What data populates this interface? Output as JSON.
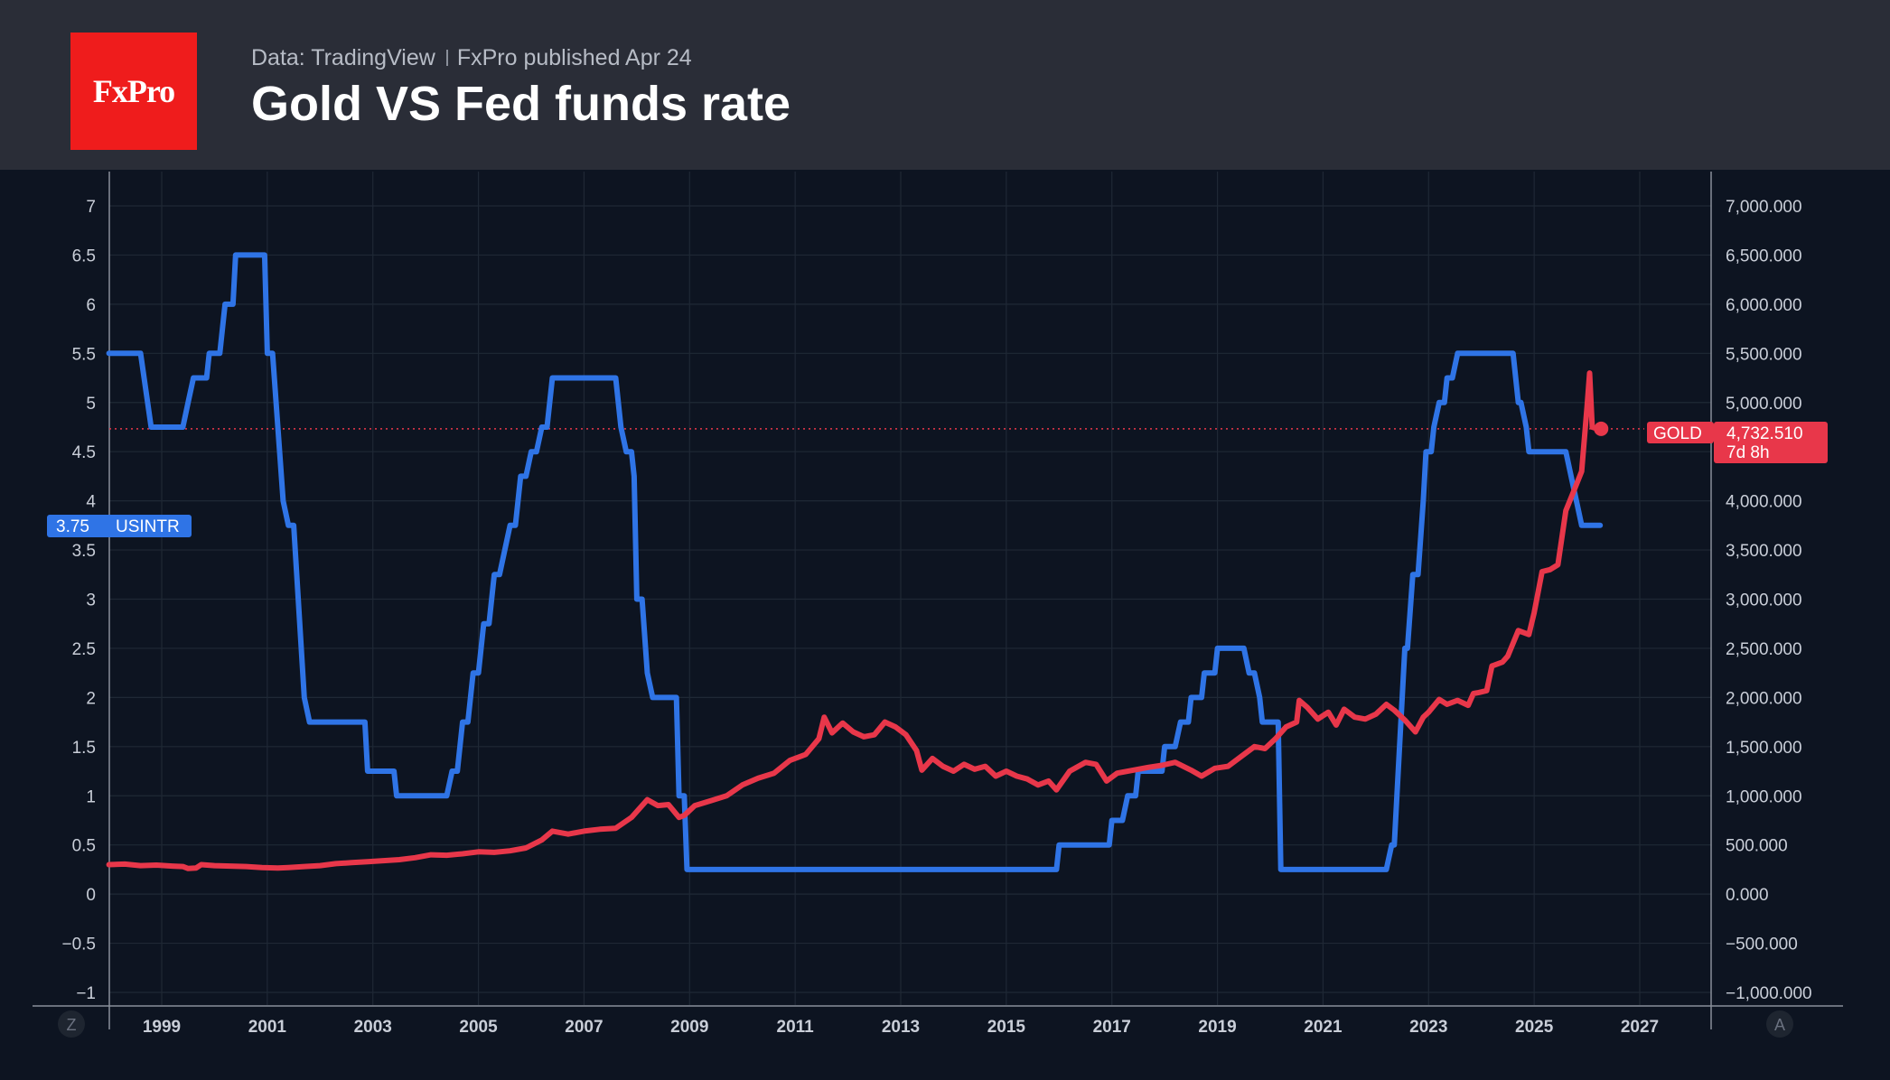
{
  "header": {
    "logo_text": "FxPro",
    "source": "Data: TradingView",
    "publisher": "FxPro published Apr 24",
    "title": "Gold VS Fed funds rate"
  },
  "colors": {
    "background": "#0d1421",
    "header": "#2a2d37",
    "logo": "#ef1c1c",
    "rate": "#2f74e6",
    "gold": "#e8374a",
    "grid": "#1f2835"
  },
  "corner_labels": {
    "left": "Z",
    "right": "A"
  },
  "chart_data": {
    "type": "line",
    "title": "Gold VS Fed funds rate",
    "xlabel": "",
    "x_ticks": [
      "1999",
      "2001",
      "2003",
      "2005",
      "2007",
      "2009",
      "2011",
      "2013",
      "2015",
      "2017",
      "2019",
      "2021",
      "2023",
      "2025",
      "2027"
    ],
    "xlim": [
      1998,
      2028.2
    ],
    "left_axis": {
      "ylim": [
        -1,
        7.4
      ],
      "ticks": [
        -1,
        -0.5,
        0,
        0.5,
        1,
        1.5,
        2,
        2.5,
        3,
        3.5,
        4,
        4.5,
        5,
        5.5,
        6,
        6.5,
        7
      ],
      "tick_labels": [
        "−1",
        "−0.5",
        "0",
        "0.5",
        "1",
        "1.5",
        "2",
        "2.5",
        "3",
        "3.5",
        "4",
        "4.5",
        "5",
        "5.5",
        "6",
        "6.5",
        "7"
      ]
    },
    "right_axis": {
      "ylim": [
        -1000,
        7400
      ],
      "ticks": [
        -1000,
        -500,
        0,
        500,
        1000,
        1500,
        2000,
        2500,
        3000,
        3500,
        4000,
        4500,
        5000,
        5500,
        6000,
        6500,
        7000
      ],
      "tick_labels": [
        "−1,000.000",
        "−500.000",
        "0.000",
        "500.000",
        "1,000.000",
        "1,500.000",
        "2,000.000",
        "2,500.000",
        "3,000.000",
        "3,500.000",
        "4,000.000",
        "4,500.000",
        "5,000.000",
        "5,500.000",
        "6,000.000",
        "6,500.000",
        "7,000.000"
      ]
    },
    "series": [
      {
        "name": "USINTR",
        "axis": "left",
        "last_value_label": "3.75",
        "points": [
          [
            1998.0,
            5.5
          ],
          [
            1998.6,
            5.5
          ],
          [
            1998.8,
            4.75
          ],
          [
            1999.4,
            4.75
          ],
          [
            1999.5,
            5.0
          ],
          [
            1999.6,
            5.25
          ],
          [
            1999.85,
            5.25
          ],
          [
            1999.9,
            5.5
          ],
          [
            2000.1,
            5.5
          ],
          [
            2000.2,
            6.0
          ],
          [
            2000.35,
            6.0
          ],
          [
            2000.4,
            6.5
          ],
          [
            2000.95,
            6.5
          ],
          [
            2001.0,
            5.5
          ],
          [
            2001.1,
            5.5
          ],
          [
            2001.3,
            4.0
          ],
          [
            2001.4,
            3.75
          ],
          [
            2001.5,
            3.75
          ],
          [
            2001.7,
            2.0
          ],
          [
            2001.8,
            1.75
          ],
          [
            2002.85,
            1.75
          ],
          [
            2002.9,
            1.25
          ],
          [
            2003.4,
            1.25
          ],
          [
            2003.45,
            1.0
          ],
          [
            2004.4,
            1.0
          ],
          [
            2004.5,
            1.25
          ],
          [
            2004.6,
            1.25
          ],
          [
            2004.7,
            1.75
          ],
          [
            2004.8,
            1.75
          ],
          [
            2004.9,
            2.25
          ],
          [
            2005.0,
            2.25
          ],
          [
            2005.1,
            2.75
          ],
          [
            2005.2,
            2.75
          ],
          [
            2005.3,
            3.25
          ],
          [
            2005.4,
            3.25
          ],
          [
            2005.6,
            3.75
          ],
          [
            2005.7,
            3.75
          ],
          [
            2005.8,
            4.25
          ],
          [
            2005.9,
            4.25
          ],
          [
            2006.0,
            4.5
          ],
          [
            2006.1,
            4.5
          ],
          [
            2006.2,
            4.75
          ],
          [
            2006.3,
            4.75
          ],
          [
            2006.4,
            5.25
          ],
          [
            2007.6,
            5.25
          ],
          [
            2007.7,
            4.75
          ],
          [
            2007.8,
            4.5
          ],
          [
            2007.9,
            4.5
          ],
          [
            2007.95,
            4.25
          ],
          [
            2008.0,
            3.0
          ],
          [
            2008.1,
            3.0
          ],
          [
            2008.2,
            2.25
          ],
          [
            2008.3,
            2.0
          ],
          [
            2008.75,
            2.0
          ],
          [
            2008.8,
            1.0
          ],
          [
            2008.9,
            1.0
          ],
          [
            2008.95,
            0.25
          ],
          [
            2015.95,
            0.25
          ],
          [
            2016.0,
            0.5
          ],
          [
            2016.95,
            0.5
          ],
          [
            2017.0,
            0.75
          ],
          [
            2017.2,
            0.75
          ],
          [
            2017.3,
            1.0
          ],
          [
            2017.45,
            1.0
          ],
          [
            2017.5,
            1.25
          ],
          [
            2017.95,
            1.25
          ],
          [
            2018.0,
            1.5
          ],
          [
            2018.2,
            1.5
          ],
          [
            2018.3,
            1.75
          ],
          [
            2018.45,
            1.75
          ],
          [
            2018.5,
            2.0
          ],
          [
            2018.7,
            2.0
          ],
          [
            2018.75,
            2.25
          ],
          [
            2018.95,
            2.25
          ],
          [
            2019.0,
            2.5
          ],
          [
            2019.5,
            2.5
          ],
          [
            2019.6,
            2.25
          ],
          [
            2019.7,
            2.25
          ],
          [
            2019.8,
            2.0
          ],
          [
            2019.85,
            1.75
          ],
          [
            2020.15,
            1.75
          ],
          [
            2020.2,
            0.25
          ],
          [
            2022.2,
            0.25
          ],
          [
            2022.3,
            0.5
          ],
          [
            2022.35,
            0.5
          ],
          [
            2022.4,
            1.0
          ],
          [
            2022.55,
            2.5
          ],
          [
            2022.6,
            2.5
          ],
          [
            2022.7,
            3.25
          ],
          [
            2022.8,
            3.25
          ],
          [
            2022.9,
            4.0
          ],
          [
            2022.95,
            4.5
          ],
          [
            2023.05,
            4.5
          ],
          [
            2023.1,
            4.75
          ],
          [
            2023.2,
            5.0
          ],
          [
            2023.3,
            5.0
          ],
          [
            2023.35,
            5.25
          ],
          [
            2023.45,
            5.25
          ],
          [
            2023.55,
            5.5
          ],
          [
            2024.6,
            5.5
          ],
          [
            2024.7,
            5.0
          ],
          [
            2024.75,
            5.0
          ],
          [
            2024.85,
            4.75
          ],
          [
            2024.9,
            4.5
          ],
          [
            2025.6,
            4.5
          ],
          [
            2025.7,
            4.25
          ],
          [
            2025.8,
            4.0
          ],
          [
            2025.9,
            3.75
          ],
          [
            2026.25,
            3.75
          ]
        ]
      },
      {
        "name": "GOLD",
        "axis": "right",
        "last_value_label": "4,732.510",
        "countdown": "7d 8h",
        "points": [
          [
            1998.0,
            300
          ],
          [
            1998.3,
            305
          ],
          [
            1998.6,
            290
          ],
          [
            1998.9,
            295
          ],
          [
            1999.2,
            285
          ],
          [
            1999.4,
            280
          ],
          [
            1999.5,
            260
          ],
          [
            1999.65,
            265
          ],
          [
            1999.75,
            300
          ],
          [
            2000.0,
            290
          ],
          [
            2000.3,
            285
          ],
          [
            2000.6,
            280
          ],
          [
            2000.9,
            270
          ],
          [
            2001.2,
            265
          ],
          [
            2001.4,
            270
          ],
          [
            2001.7,
            280
          ],
          [
            2002.0,
            290
          ],
          [
            2002.3,
            310
          ],
          [
            2002.6,
            320
          ],
          [
            2002.9,
            330
          ],
          [
            2003.2,
            340
          ],
          [
            2003.5,
            350
          ],
          [
            2003.8,
            370
          ],
          [
            2004.1,
            400
          ],
          [
            2004.4,
            395
          ],
          [
            2004.7,
            410
          ],
          [
            2005.0,
            430
          ],
          [
            2005.3,
            425
          ],
          [
            2005.6,
            440
          ],
          [
            2005.9,
            470
          ],
          [
            2006.2,
            550
          ],
          [
            2006.4,
            640
          ],
          [
            2006.7,
            610
          ],
          [
            2007.0,
            640
          ],
          [
            2007.3,
            660
          ],
          [
            2007.6,
            670
          ],
          [
            2007.9,
            780
          ],
          [
            2008.2,
            960
          ],
          [
            2008.4,
            900
          ],
          [
            2008.6,
            910
          ],
          [
            2008.8,
            780
          ],
          [
            2008.9,
            800
          ],
          [
            2009.1,
            900
          ],
          [
            2009.4,
            950
          ],
          [
            2009.7,
            1000
          ],
          [
            2010.0,
            1110
          ],
          [
            2010.3,
            1180
          ],
          [
            2010.6,
            1230
          ],
          [
            2010.9,
            1360
          ],
          [
            2011.2,
            1420
          ],
          [
            2011.45,
            1580
          ],
          [
            2011.55,
            1800
          ],
          [
            2011.7,
            1640
          ],
          [
            2011.9,
            1740
          ],
          [
            2012.1,
            1650
          ],
          [
            2012.3,
            1600
          ],
          [
            2012.5,
            1620
          ],
          [
            2012.7,
            1750
          ],
          [
            2012.9,
            1700
          ],
          [
            2013.1,
            1620
          ],
          [
            2013.3,
            1460
          ],
          [
            2013.4,
            1260
          ],
          [
            2013.6,
            1380
          ],
          [
            2013.8,
            1300
          ],
          [
            2014.0,
            1250
          ],
          [
            2014.2,
            1320
          ],
          [
            2014.4,
            1270
          ],
          [
            2014.6,
            1300
          ],
          [
            2014.8,
            1200
          ],
          [
            2015.0,
            1250
          ],
          [
            2015.2,
            1200
          ],
          [
            2015.4,
            1170
          ],
          [
            2015.6,
            1110
          ],
          [
            2015.8,
            1150
          ],
          [
            2015.95,
            1060
          ],
          [
            2016.2,
            1250
          ],
          [
            2016.5,
            1340
          ],
          [
            2016.7,
            1320
          ],
          [
            2016.9,
            1150
          ],
          [
            2017.1,
            1230
          ],
          [
            2017.4,
            1260
          ],
          [
            2017.7,
            1290
          ],
          [
            2017.95,
            1310
          ],
          [
            2018.2,
            1340
          ],
          [
            2018.5,
            1260
          ],
          [
            2018.7,
            1200
          ],
          [
            2018.95,
            1280
          ],
          [
            2019.2,
            1300
          ],
          [
            2019.45,
            1400
          ],
          [
            2019.7,
            1500
          ],
          [
            2019.9,
            1480
          ],
          [
            2020.1,
            1580
          ],
          [
            2020.3,
            1700
          ],
          [
            2020.5,
            1750
          ],
          [
            2020.55,
            1970
          ],
          [
            2020.7,
            1900
          ],
          [
            2020.9,
            1780
          ],
          [
            2021.1,
            1850
          ],
          [
            2021.25,
            1720
          ],
          [
            2021.4,
            1880
          ],
          [
            2021.6,
            1800
          ],
          [
            2021.8,
            1780
          ],
          [
            2022.0,
            1830
          ],
          [
            2022.2,
            1930
          ],
          [
            2022.35,
            1870
          ],
          [
            2022.55,
            1770
          ],
          [
            2022.75,
            1650
          ],
          [
            2022.9,
            1800
          ],
          [
            2023.0,
            1850
          ],
          [
            2023.2,
            1980
          ],
          [
            2023.35,
            1930
          ],
          [
            2023.55,
            1970
          ],
          [
            2023.75,
            1920
          ],
          [
            2023.85,
            2040
          ],
          [
            2023.95,
            2050
          ],
          [
            2024.1,
            2070
          ],
          [
            2024.2,
            2320
          ],
          [
            2024.4,
            2360
          ],
          [
            2024.5,
            2420
          ],
          [
            2024.7,
            2680
          ],
          [
            2024.9,
            2640
          ],
          [
            2025.0,
            2860
          ],
          [
            2025.15,
            3280
          ],
          [
            2025.3,
            3300
          ],
          [
            2025.45,
            3350
          ],
          [
            2025.6,
            3900
          ],
          [
            2025.75,
            4100
          ],
          [
            2025.9,
            4300
          ],
          [
            2026.0,
            4950
          ],
          [
            2026.05,
            5300
          ],
          [
            2026.1,
            4750
          ],
          [
            2026.2,
            4732.51
          ]
        ]
      }
    ],
    "current_gold_level": 4732.51
  }
}
